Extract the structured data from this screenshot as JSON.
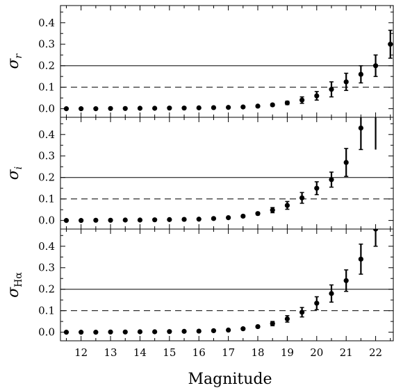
{
  "chart_data": {
    "type": "scatter",
    "xlabel": "Magnitude",
    "xlim": [
      11.3,
      22.6
    ],
    "x_ticks": [
      12,
      13,
      14,
      15,
      16,
      17,
      18,
      19,
      20,
      21,
      22
    ],
    "x_tick_labels": [
      "12",
      "13",
      "14",
      "15",
      "16",
      "17",
      "18",
      "19",
      "20",
      "21",
      "22"
    ],
    "x_minor_step": 0.5,
    "grid": false,
    "reference_lines": [
      {
        "y": 0.2,
        "style": "solid"
      },
      {
        "y": 0.1,
        "style": "dashed"
      }
    ],
    "panels": [
      {
        "id": "r",
        "ylabel_base": "σ",
        "ylabel_sub": "r",
        "ylabel_sub_upright": false,
        "ylim": [
          -0.04,
          0.48
        ],
        "y_ticks": [
          0.0,
          0.1,
          0.2,
          0.3,
          0.4
        ],
        "y_tick_labels": [
          "0.0",
          "0.1",
          "0.2",
          "0.3",
          "0.4"
        ],
        "x": [
          11.5,
          12,
          12.5,
          13,
          13.5,
          14,
          14.5,
          15,
          15.5,
          16,
          16.5,
          17,
          17.5,
          18,
          18.5,
          19,
          19.5,
          20,
          20.5,
          21,
          21.5,
          22,
          22.5
        ],
        "y": [
          0.0,
          0.0,
          0.0,
          0.001,
          0.001,
          0.002,
          0.002,
          0.003,
          0.003,
          0.004,
          0.005,
          0.006,
          0.008,
          0.012,
          0.018,
          0.027,
          0.04,
          0.06,
          0.09,
          0.125,
          0.16,
          0.2,
          0.3
        ],
        "yerr": [
          0.0,
          0.0,
          0.0,
          0.0,
          0.0,
          0.0,
          0.0,
          0.0,
          0.0,
          0.0,
          0.0,
          0.0,
          0.002,
          0.003,
          0.005,
          0.008,
          0.015,
          0.02,
          0.035,
          0.04,
          0.04,
          0.05,
          0.065
        ]
      },
      {
        "id": "i",
        "ylabel_base": "σ",
        "ylabel_sub": "i",
        "ylabel_sub_upright": false,
        "ylim": [
          -0.04,
          0.48
        ],
        "y_ticks": [
          0.0,
          0.1,
          0.2,
          0.3,
          0.4
        ],
        "y_tick_labels": [
          "0.0",
          "0.1",
          "0.2",
          "0.3",
          "0.4"
        ],
        "x": [
          11.5,
          12,
          12.5,
          13,
          13.5,
          14,
          14.5,
          15,
          15.5,
          16,
          16.5,
          17,
          17.5,
          18,
          18.5,
          19,
          19.5,
          20,
          20.5,
          21,
          21.5,
          22
        ],
        "y": [
          0.0,
          0.0,
          0.001,
          0.001,
          0.002,
          0.002,
          0.003,
          0.004,
          0.005,
          0.006,
          0.009,
          0.013,
          0.02,
          0.032,
          0.048,
          0.07,
          0.105,
          0.15,
          0.19,
          0.27,
          0.43,
          null
        ],
        "yerr": [
          0.0,
          0.0,
          0.0,
          0.0,
          0.0,
          0.0,
          0.0,
          0.0,
          0.0,
          0.0,
          0.0,
          0.002,
          0.004,
          0.006,
          0.012,
          0.018,
          0.025,
          0.03,
          0.035,
          0.065,
          0.1,
          null
        ]
      },
      {
        "id": "ha",
        "ylabel_base": "σ",
        "ylabel_sub": "Hα",
        "ylabel_sub_upright": true,
        "ylim": [
          -0.04,
          0.48
        ],
        "y_ticks": [
          0.0,
          0.1,
          0.2,
          0.3,
          0.4
        ],
        "y_tick_labels": [
          "0.0",
          "0.1",
          "0.2",
          "0.3",
          "0.4"
        ],
        "x": [
          11.5,
          12,
          12.5,
          13,
          13.5,
          14,
          14.5,
          15,
          15.5,
          16,
          16.5,
          17,
          17.5,
          18,
          18.5,
          19,
          19.5,
          20,
          20.5,
          21,
          21.5,
          22
        ],
        "y": [
          0.0,
          0.0,
          0.0,
          0.001,
          0.001,
          0.002,
          0.002,
          0.003,
          0.004,
          0.005,
          0.007,
          0.01,
          0.016,
          0.026,
          0.04,
          0.062,
          0.093,
          0.135,
          0.18,
          0.24,
          0.34,
          0.48
        ],
        "yerr": [
          0.0,
          0.0,
          0.0,
          0.0,
          0.0,
          0.0,
          0.0,
          0.0,
          0.0,
          0.0,
          0.0,
          0.002,
          0.003,
          0.005,
          0.01,
          0.015,
          0.022,
          0.03,
          0.04,
          0.05,
          0.07,
          0.08
        ]
      }
    ]
  }
}
